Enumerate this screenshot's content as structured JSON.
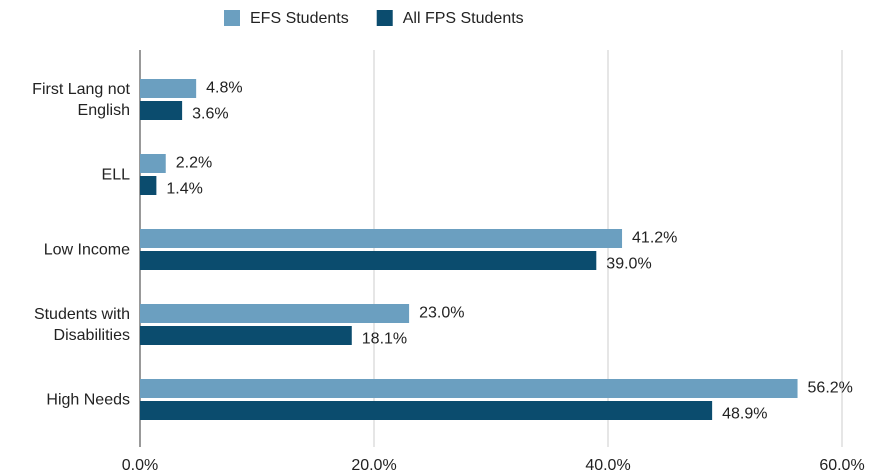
{
  "chart_data": {
    "type": "hbar",
    "categories": [
      "First Lang not English",
      "ELL",
      "Low Income",
      "Students with Disabilities",
      "High Needs"
    ],
    "series": [
      {
        "name": "EFS Students",
        "color": "#6b9fc0",
        "label_color": "#7aa7c6",
        "values": [
          4.8,
          2.2,
          41.2,
          23.0,
          56.2
        ],
        "value_labels": [
          "4.8%",
          "2.2%",
          "41.2%",
          "23.0%",
          "56.2%"
        ]
      },
      {
        "name": "All FPS Students",
        "color": "#0b4c6e",
        "label_color": "#0b4c6e",
        "values": [
          3.6,
          1.4,
          39.0,
          18.1,
          48.9
        ],
        "value_labels": [
          "3.6%",
          "1.4%",
          "39.0%",
          "18.1%",
          "48.9%"
        ]
      }
    ],
    "xlim": [
      0,
      60
    ],
    "xticks": [
      {
        "value": 0,
        "label": "0.0%"
      },
      {
        "value": 20,
        "label": "20.0%"
      },
      {
        "value": 40,
        "label": "40.0%"
      },
      {
        "value": 60,
        "label": "60.0%"
      }
    ],
    "grid": true,
    "legend": "top"
  }
}
